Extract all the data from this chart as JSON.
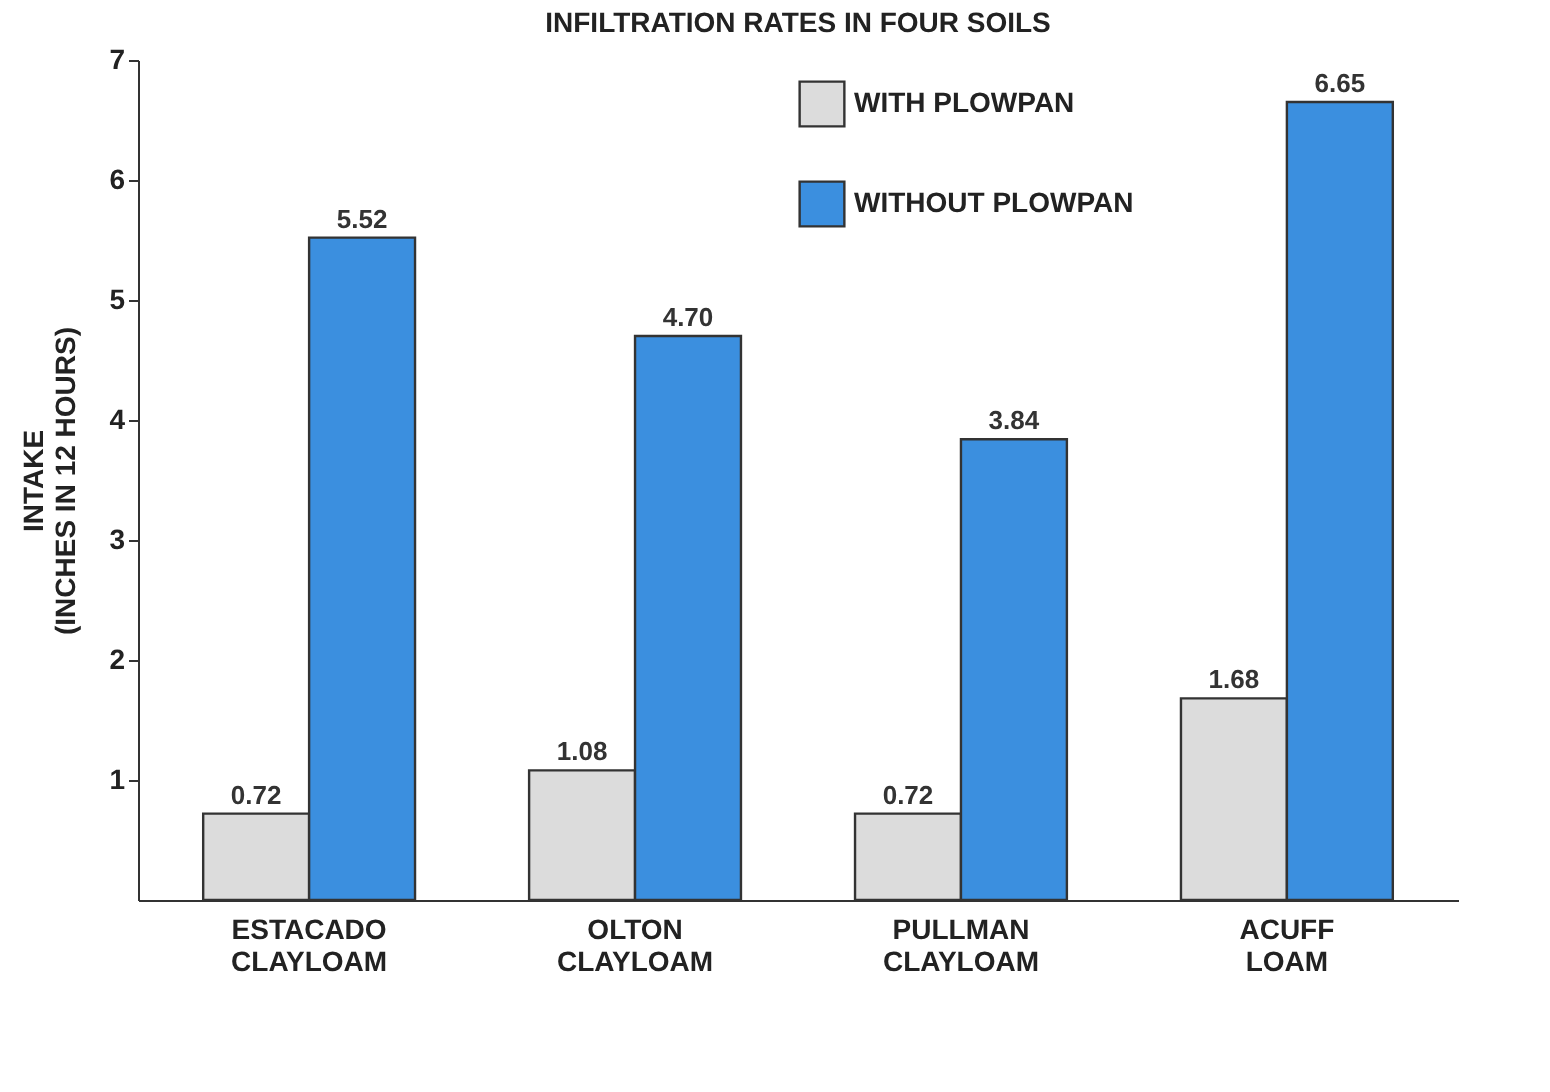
{
  "chart_data": {
    "type": "bar",
    "title": "INFILTRATION RATES IN FOUR SOILS",
    "ylabel": "INTAKE\n(INCHES IN 12 HOURS)",
    "categories": [
      "ESTACADO CLAYLOAM",
      "OLTON CLAYLOAM",
      "PULLMAN CLAYLOAM",
      "ACUFF LOAM"
    ],
    "series": [
      {
        "name": "WITH PLOWPAN",
        "color": "#dcdcdc",
        "values": [
          0.72,
          1.08,
          0.72,
          1.68
        ],
        "value_labels": [
          "0.72",
          "1.08",
          "0.72",
          "1.68"
        ]
      },
      {
        "name": "WITHOUT PLOWPAN",
        "color": "#3b8fdf",
        "values": [
          5.52,
          4.7,
          3.84,
          6.65
        ],
        "value_labels": [
          "5.52",
          "4.70",
          "3.84",
          "6.65"
        ]
      }
    ],
    "ylim": [
      0,
      7
    ],
    "yticks": [
      1,
      2,
      3,
      4,
      5,
      6,
      7
    ],
    "legend": "top right"
  }
}
